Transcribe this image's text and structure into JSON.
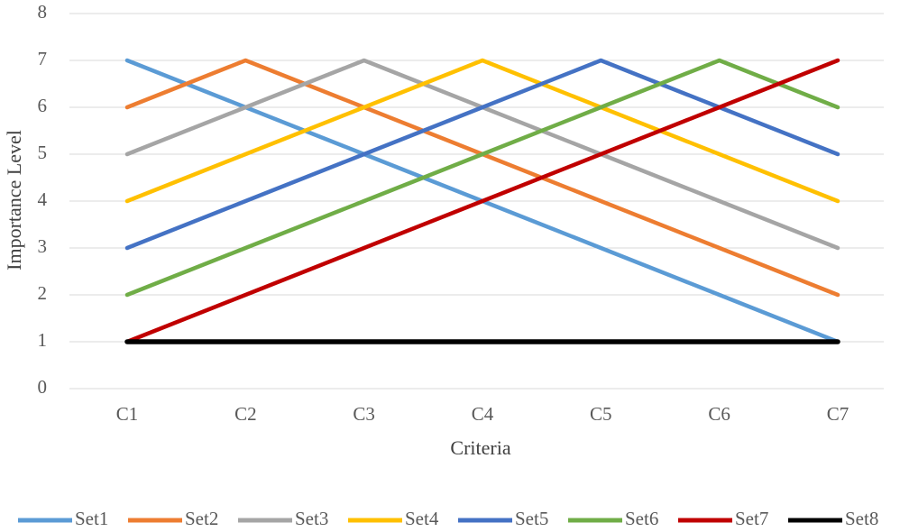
{
  "chart_data": {
    "type": "line",
    "title": "",
    "xlabel": "Criteria",
    "ylabel": "Importance Level",
    "categories": [
      "C1",
      "C2",
      "C3",
      "C4",
      "C5",
      "C6",
      "C7"
    ],
    "ylim": [
      0,
      8
    ],
    "yticks": [
      0,
      1,
      2,
      3,
      4,
      5,
      6,
      7,
      8
    ],
    "grid": true,
    "legend_position": "bottom",
    "series": [
      {
        "name": "Set1",
        "color": "#5B9BD5",
        "values": [
          7,
          6,
          5,
          4,
          3,
          2,
          1
        ]
      },
      {
        "name": "Set2",
        "color": "#ED7D31",
        "values": [
          6,
          7,
          6,
          5,
          4,
          3,
          2
        ]
      },
      {
        "name": "Set3",
        "color": "#A5A5A5",
        "values": [
          5,
          6,
          7,
          6,
          5,
          4,
          3
        ]
      },
      {
        "name": "Set4",
        "color": "#FFC000",
        "values": [
          4,
          5,
          6,
          7,
          6,
          5,
          4
        ]
      },
      {
        "name": "Set5",
        "color": "#4472C4",
        "values": [
          3,
          4,
          5,
          6,
          7,
          6,
          5
        ]
      },
      {
        "name": "Set6",
        "color": "#70AD47",
        "values": [
          2,
          3,
          4,
          5,
          6,
          7,
          6
        ]
      },
      {
        "name": "Set7",
        "color": "#C00000",
        "values": [
          1,
          2,
          3,
          4,
          5,
          6,
          7
        ]
      },
      {
        "name": "Set8",
        "color": "#000000",
        "values": [
          1,
          1,
          1,
          1,
          1,
          1,
          1
        ]
      }
    ]
  }
}
